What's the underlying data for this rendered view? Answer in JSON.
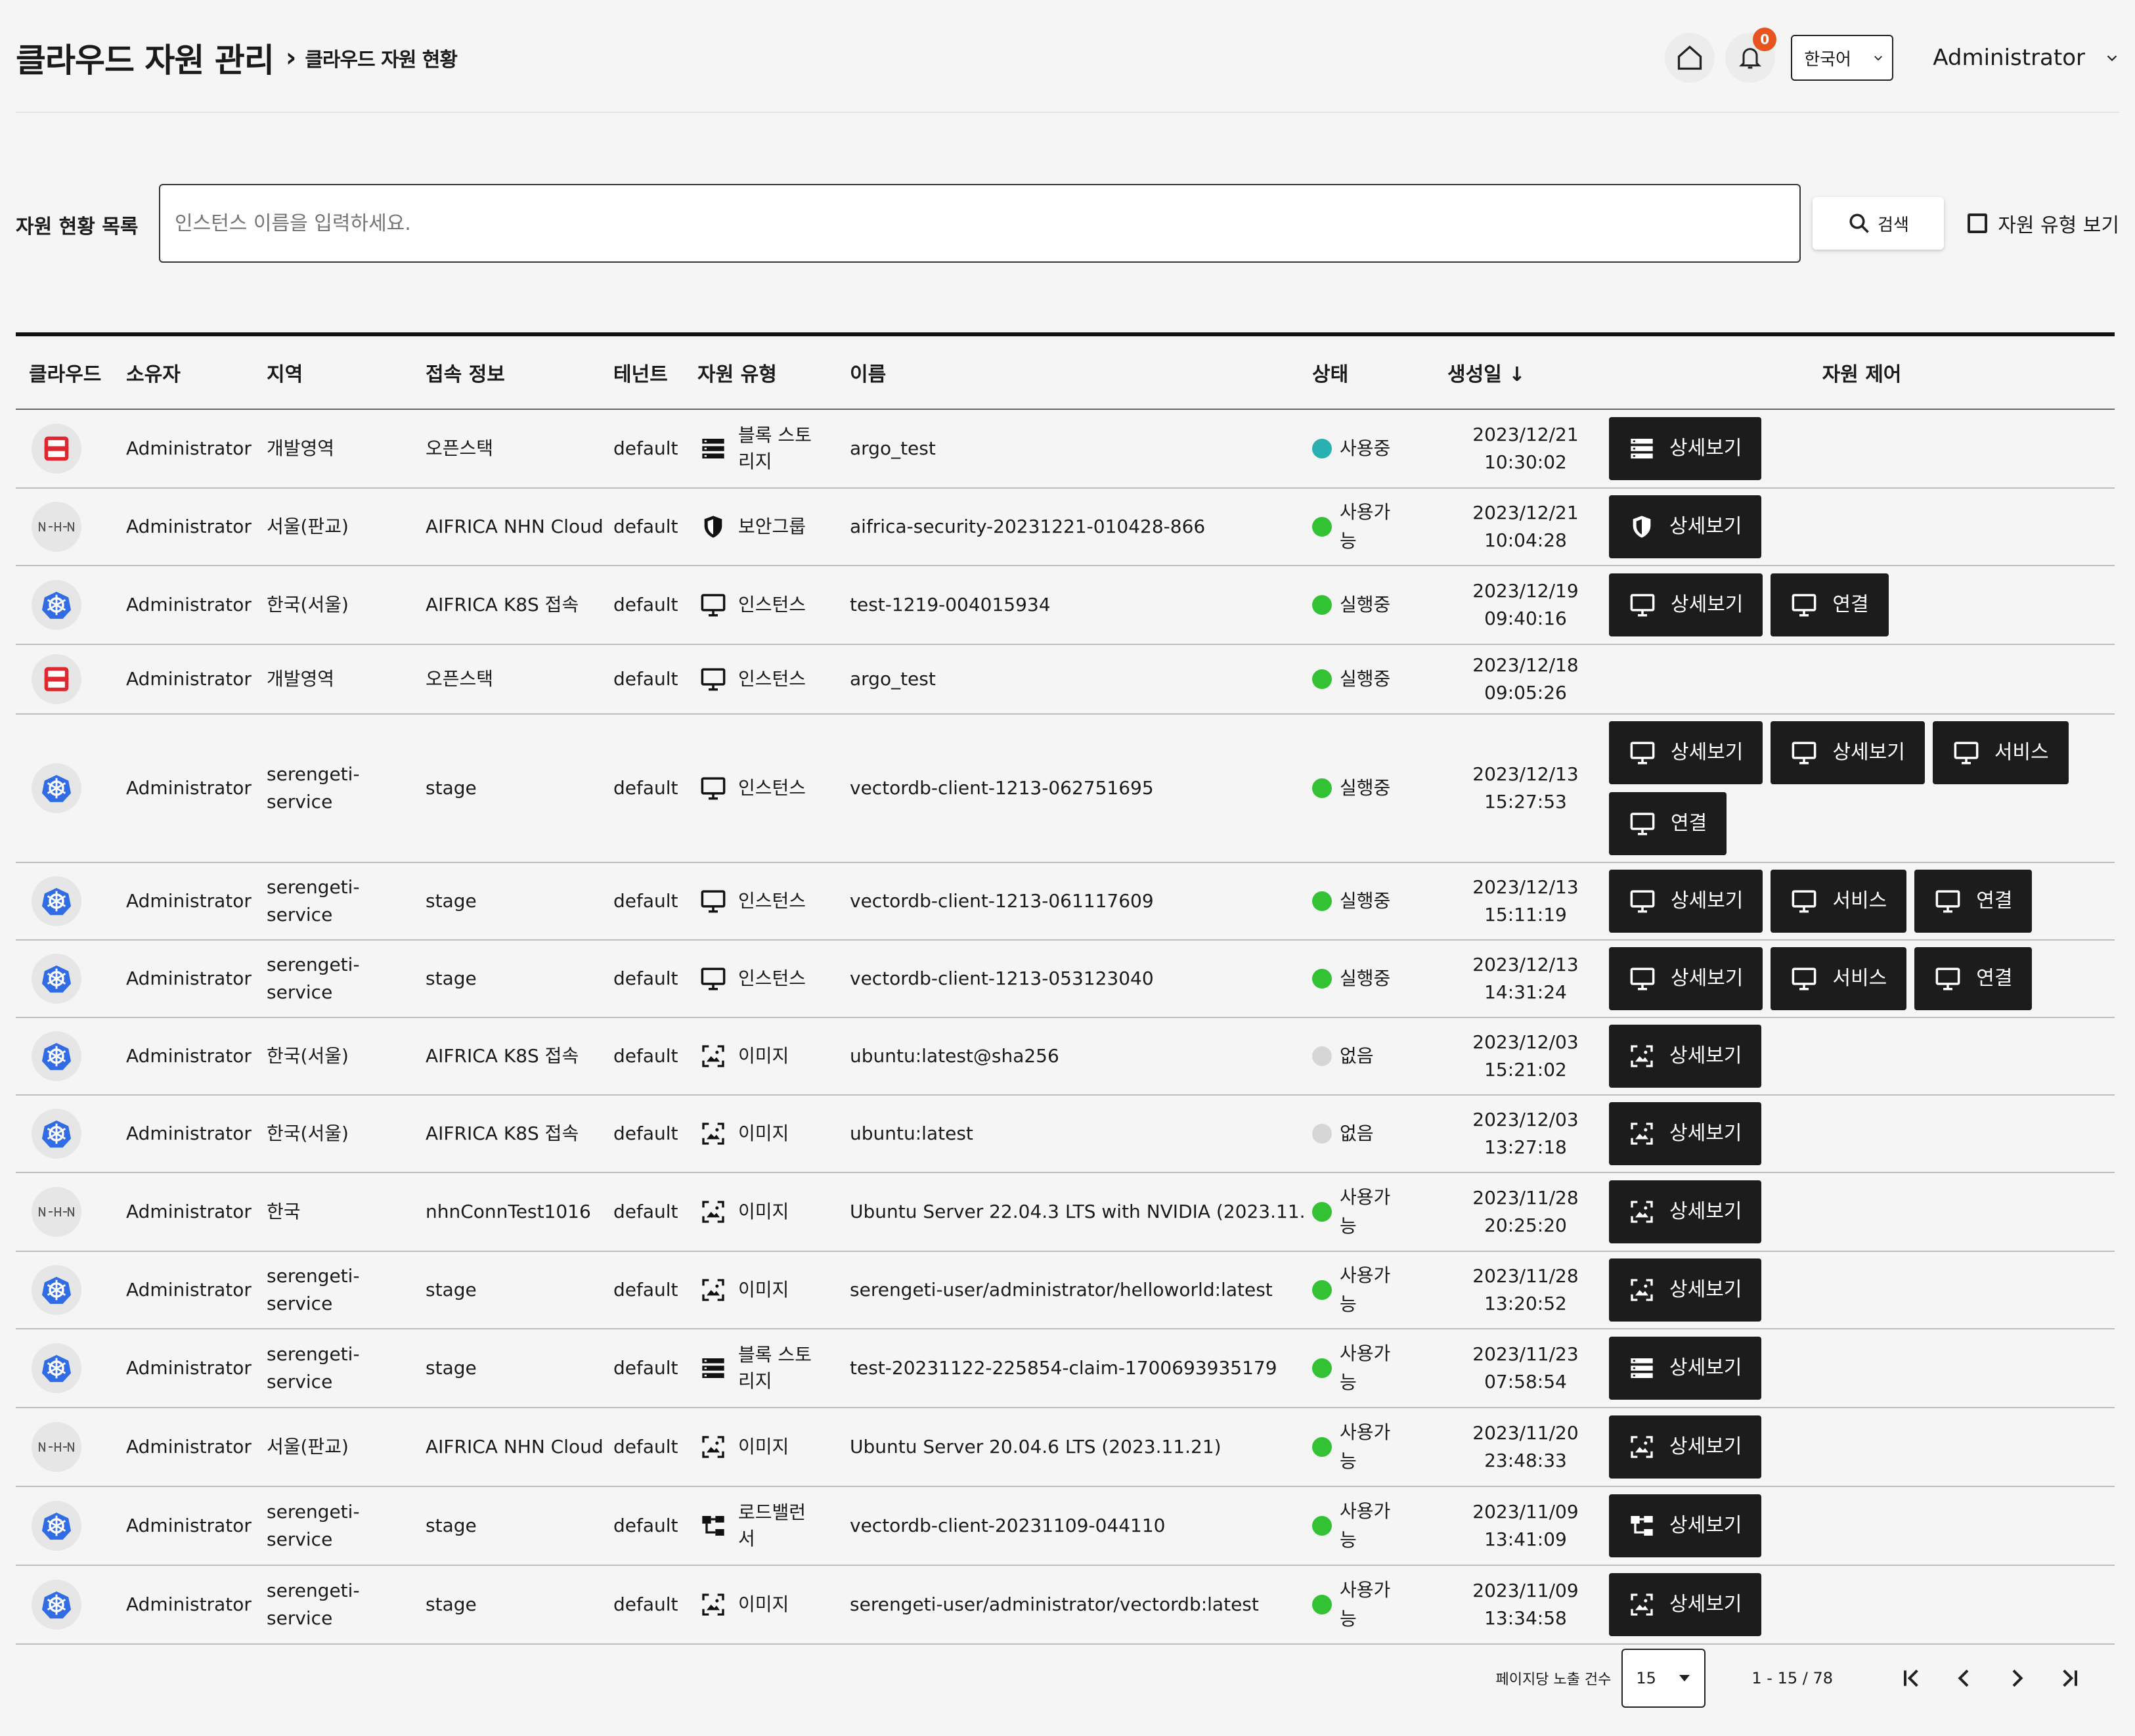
{
  "header": {
    "title": "클라우드 자원 관리",
    "breadcrumb_sep": "›",
    "subtitle": "클라우드 자원 현황",
    "notification_count": "0",
    "language": "한국어",
    "user": "Administrator"
  },
  "search": {
    "label": "자원 현황 목록",
    "placeholder": "인스턴스 이름을 입력하세요.",
    "button": "검색",
    "type_toggle": "자원 유형 보기"
  },
  "table": {
    "columns": [
      "클라우드",
      "소유자",
      "지역",
      "접속 정보",
      "테넌트",
      "자원 유형",
      "이름",
      "상태",
      "생성일 ↓",
      "자원 제어"
    ],
    "rows": [
      {
        "cloud": "openstack",
        "owner": "Administrator",
        "region": "개발영역",
        "access": "오픈스택",
        "tenant": "default",
        "type_icon": "storage-icon",
        "type": "블록 스토리지",
        "name": "argo_test",
        "status": "사용중",
        "status_color": "#2ab0b0",
        "date": "2023/12/21",
        "time": "10:30:02",
        "buttons": [
          {
            "icon": "storage-icon",
            "label": "상세보기"
          }
        ]
      },
      {
        "cloud": "nhn",
        "owner": "Administrator",
        "region": "서울(판교)",
        "access": "AIFRICA NHN Cloud",
        "tenant": "default",
        "type_icon": "shield-icon",
        "type": "보안그룹",
        "name": "aifrica-security-20231221-010428-866",
        "status": "사용가능",
        "status_color": "#33c233",
        "date": "2023/12/21",
        "time": "10:04:28",
        "buttons": [
          {
            "icon": "shield-icon",
            "label": "상세보기"
          }
        ]
      },
      {
        "cloud": "k8s",
        "owner": "Administrator",
        "region": "한국(서울)",
        "access": "AIFRICA K8S 접속",
        "tenant": "default",
        "type_icon": "monitor-icon",
        "type": "인스턴스",
        "name": "test-1219-004015934",
        "status": "실행중",
        "status_color": "#33c233",
        "date": "2023/12/19",
        "time": "09:40:16",
        "buttons": [
          {
            "icon": "monitor-icon",
            "label": "상세보기"
          },
          {
            "icon": "monitor-icon",
            "label": "연결"
          }
        ]
      },
      {
        "cloud": "openstack",
        "owner": "Administrator",
        "region": "개발영역",
        "access": "오픈스택",
        "tenant": "default",
        "type_icon": "monitor-icon",
        "type": "인스턴스",
        "name": "argo_test",
        "status": "실행중",
        "status_color": "#33c233",
        "date": "2023/12/18",
        "time": "09:05:26",
        "buttons": []
      },
      {
        "cloud": "k8s",
        "owner": "Administrator",
        "region": "serengeti-service",
        "access": "stage",
        "tenant": "default",
        "type_icon": "monitor-icon",
        "type": "인스턴스",
        "name": "vectordb-client-1213-062751695",
        "status": "실행중",
        "status_color": "#33c233",
        "date": "2023/12/13",
        "time": "15:27:53",
        "buttons": [
          {
            "icon": "monitor-icon",
            "label": "상세보기"
          },
          {
            "icon": "monitor-icon",
            "label": "상세보기"
          },
          {
            "icon": "monitor-icon",
            "label": "서비스"
          },
          {
            "icon": "monitor-icon",
            "label": "연결"
          }
        ]
      },
      {
        "cloud": "k8s",
        "owner": "Administrator",
        "region": "serengeti-service",
        "access": "stage",
        "tenant": "default",
        "type_icon": "monitor-icon",
        "type": "인스턴스",
        "name": "vectordb-client-1213-061117609",
        "status": "실행중",
        "status_color": "#33c233",
        "date": "2023/12/13",
        "time": "15:11:19",
        "buttons": [
          {
            "icon": "monitor-icon",
            "label": "상세보기"
          },
          {
            "icon": "monitor-icon",
            "label": "서비스"
          },
          {
            "icon": "monitor-icon",
            "label": "연결"
          }
        ]
      },
      {
        "cloud": "k8s",
        "owner": "Administrator",
        "region": "serengeti-service",
        "access": "stage",
        "tenant": "default",
        "type_icon": "monitor-icon",
        "type": "인스턴스",
        "name": "vectordb-client-1213-053123040",
        "status": "실행중",
        "status_color": "#33c233",
        "date": "2023/12/13",
        "time": "14:31:24",
        "buttons": [
          {
            "icon": "monitor-icon",
            "label": "상세보기"
          },
          {
            "icon": "monitor-icon",
            "label": "서비스"
          },
          {
            "icon": "monitor-icon",
            "label": "연결"
          }
        ]
      },
      {
        "cloud": "k8s",
        "owner": "Administrator",
        "region": "한국(서울)",
        "access": "AIFRICA K8S 접속",
        "tenant": "default",
        "type_icon": "image-icon",
        "type": "이미지",
        "name": "ubuntu:latest@sha256",
        "status": "없음",
        "status_color": "#d6d6d6",
        "date": "2023/12/03",
        "time": "15:21:02",
        "buttons": [
          {
            "icon": "image-icon",
            "label": "상세보기"
          }
        ]
      },
      {
        "cloud": "k8s",
        "owner": "Administrator",
        "region": "한국(서울)",
        "access": "AIFRICA K8S 접속",
        "tenant": "default",
        "type_icon": "image-icon",
        "type": "이미지",
        "name": "ubuntu:latest",
        "status": "없음",
        "status_color": "#d6d6d6",
        "date": "2023/12/03",
        "time": "13:27:18",
        "buttons": [
          {
            "icon": "image-icon",
            "label": "상세보기"
          }
        ]
      },
      {
        "cloud": "nhn",
        "owner": "Administrator",
        "region": "한국",
        "access": "nhnConnTest1016",
        "tenant": "default",
        "type_icon": "image-icon",
        "type": "이미지",
        "name": "Ubuntu Server 22.04.3 LTS with NVIDIA (2023.11....",
        "status": "사용가능",
        "status_color": "#33c233",
        "date": "2023/11/28",
        "time": "20:25:20",
        "buttons": [
          {
            "icon": "image-icon",
            "label": "상세보기"
          }
        ]
      },
      {
        "cloud": "k8s",
        "owner": "Administrator",
        "region": "serengeti-service",
        "access": "stage",
        "tenant": "default",
        "type_icon": "image-icon",
        "type": "이미지",
        "name": "serengeti-user/administrator/helloworld:latest",
        "status": "사용가능",
        "status_color": "#33c233",
        "date": "2023/11/28",
        "time": "13:20:52",
        "buttons": [
          {
            "icon": "image-icon",
            "label": "상세보기"
          }
        ]
      },
      {
        "cloud": "k8s",
        "owner": "Administrator",
        "region": "serengeti-service",
        "access": "stage",
        "tenant": "default",
        "type_icon": "storage-icon",
        "type": "블록 스토리지",
        "name": "test-20231122-225854-claim-1700693935179",
        "status": "사용가능",
        "status_color": "#33c233",
        "date": "2023/11/23",
        "time": "07:58:54",
        "buttons": [
          {
            "icon": "storage-icon",
            "label": "상세보기"
          }
        ]
      },
      {
        "cloud": "nhn",
        "owner": "Administrator",
        "region": "서울(판교)",
        "access": "AIFRICA NHN Cloud",
        "tenant": "default",
        "type_icon": "image-icon",
        "type": "이미지",
        "name": "Ubuntu Server 20.04.6 LTS (2023.11.21)",
        "status": "사용가능",
        "status_color": "#33c233",
        "date": "2023/11/20",
        "time": "23:48:33",
        "buttons": [
          {
            "icon": "image-icon",
            "label": "상세보기"
          }
        ]
      },
      {
        "cloud": "k8s",
        "owner": "Administrator",
        "region": "serengeti-service",
        "access": "stage",
        "tenant": "default",
        "type_icon": "lb-icon",
        "type": "로드밸런서",
        "name": "vectordb-client-20231109-044110",
        "status": "사용가능",
        "status_color": "#33c233",
        "date": "2023/11/09",
        "time": "13:41:09",
        "buttons": [
          {
            "icon": "lb-icon",
            "label": "상세보기"
          }
        ]
      },
      {
        "cloud": "k8s",
        "owner": "Administrator",
        "region": "serengeti-service",
        "access": "stage",
        "tenant": "default",
        "type_icon": "image-icon",
        "type": "이미지",
        "name": "serengeti-user/administrator/vectordb:latest",
        "status": "사용가능",
        "status_color": "#33c233",
        "date": "2023/11/09",
        "time": "13:34:58",
        "buttons": [
          {
            "icon": "image-icon",
            "label": "상세보기"
          }
        ]
      }
    ]
  },
  "pagination": {
    "per_page_label": "페이지당 노출 건수",
    "per_page": "15",
    "range": "1 - 15 / 78"
  }
}
